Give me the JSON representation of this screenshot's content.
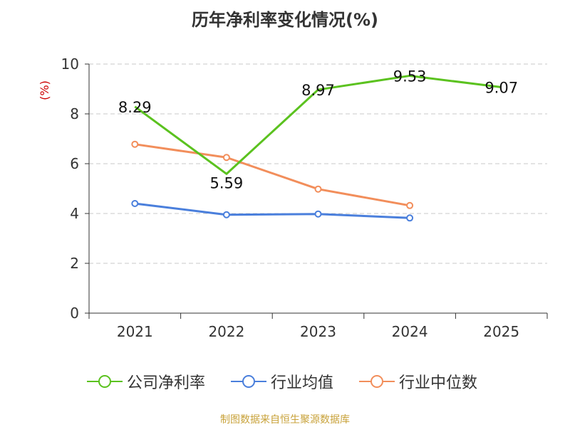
{
  "chart_data": {
    "type": "line",
    "title": "历年净利率变化情况(%)",
    "ylabel": "(%)",
    "xlabel": "",
    "categories": [
      "2021",
      "2022",
      "2023",
      "2024",
      "2025"
    ],
    "ylim": [
      0,
      10
    ],
    "yticks": [
      "0",
      "2",
      "4",
      "6",
      "8",
      "10"
    ],
    "grid": true,
    "legend_position": "bottom",
    "series": [
      {
        "name": "公司净利率",
        "color": "#5bc21f",
        "values": [
          8.29,
          5.59,
          8.97,
          9.53,
          9.07
        ],
        "labels": [
          "8.29",
          "5.59",
          "8.97",
          "9.53",
          "9.07"
        ]
      },
      {
        "name": "行业均值",
        "color": "#4a7fdc",
        "values": [
          4.4,
          3.95,
          3.98,
          3.82,
          null
        ]
      },
      {
        "name": "行业中位数",
        "color": "#f28e5b",
        "values": [
          6.78,
          6.25,
          4.98,
          4.32,
          null
        ]
      }
    ]
  },
  "footer": {
    "source": "制图数据来自恒生聚源数据库"
  }
}
